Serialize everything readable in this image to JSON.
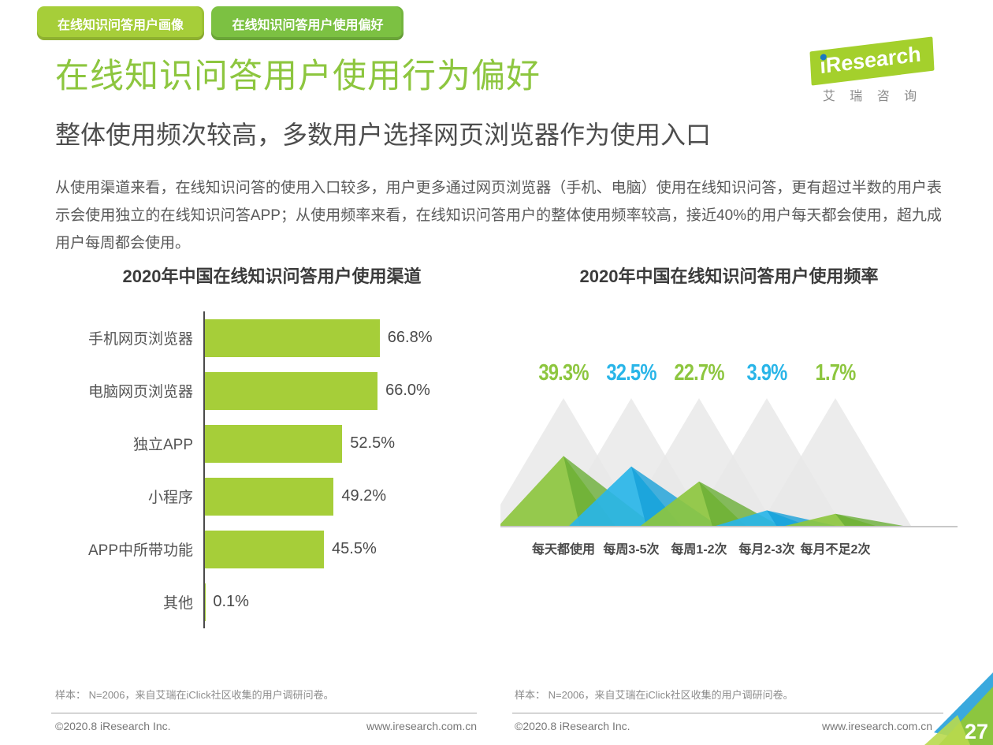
{
  "tabs": [
    {
      "label": "在线知识问答用户画像"
    },
    {
      "label": "在线知识问答用户使用偏好"
    }
  ],
  "logo": {
    "brand": "iResearch",
    "chinese": "艾 瑞 咨 询"
  },
  "page": {
    "title": "在线知识问答用户使用行为偏好",
    "subtitle": "整体使用频次较高，多数用户选择网页浏览器作为使用入口",
    "paragraph": "从使用渠道来看，在线知识问答的使用入口较多，用户更多通过网页浏览器（手机、电脑）使用在线知识问答，更有超过半数的用户表示会使用独立的在线知识问答APP；从使用频率来看，在线知识问答用户的整体使用频率较高，接近40%的用户每天都会使用，超九成用户每周都会使用。"
  },
  "chart_data": [
    {
      "type": "bar",
      "orientation": "horizontal",
      "title": "2020年中国在线知识问答用户使用渠道",
      "categories": [
        "手机网页浏览器",
        "电脑网页浏览器",
        "独立APP",
        "小程序",
        "APP中所带功能",
        "其他"
      ],
      "values": [
        66.8,
        66.0,
        52.5,
        49.2,
        45.5,
        0.1
      ],
      "value_labels": [
        "66.8%",
        "66.0%",
        "52.5%",
        "49.2%",
        "45.5%",
        "0.1%"
      ],
      "bar_color": "#a6ce39",
      "axis_color": "#4a4a4a",
      "xlim": [
        0,
        70
      ],
      "grid": false,
      "legend": false
    },
    {
      "type": "area",
      "variant": "overlapping-peaks",
      "title": "2020年中国在线知识问答用户使用频率",
      "categories": [
        "每天都使用",
        "每周3-5次",
        "每周1-2次",
        "每月2-3次",
        "每月不足2次"
      ],
      "values": [
        39.3,
        32.5,
        22.7,
        3.9,
        1.7
      ],
      "value_labels": [
        "39.3%",
        "32.5%",
        "22.7%",
        "3.9%",
        "1.7%"
      ],
      "series_colors": [
        "#8dc63f",
        "#29b5e8",
        "#8dc63f",
        "#29b5e8",
        "#8dc63f"
      ],
      "series_dark_colors": [
        "#68ad33",
        "#149fd8",
        "#68ad33",
        "#149fd8",
        "#68ad33"
      ],
      "background_peak_color": "#e9e9e9",
      "baseline_color": "#c8c8c8",
      "ylim": [
        0,
        100
      ],
      "grid": false,
      "legend": false
    }
  ],
  "footnote": {
    "sample": "样本： N=2006，来自艾瑞在iClick社区收集的用户调研问卷。"
  },
  "footer": {
    "copyright": "©2020.8 iResearch Inc.",
    "site": "www.iresearch.com.cn",
    "page_number": "27"
  },
  "colors": {
    "title_green": "#8dc63f",
    "tab1_green": "#a6ce39",
    "tab2_green": "#7cc142",
    "corner_blue": "#3aa9de",
    "corner_green": "#8cc63f",
    "corner_light_green": "#b9d94e"
  }
}
